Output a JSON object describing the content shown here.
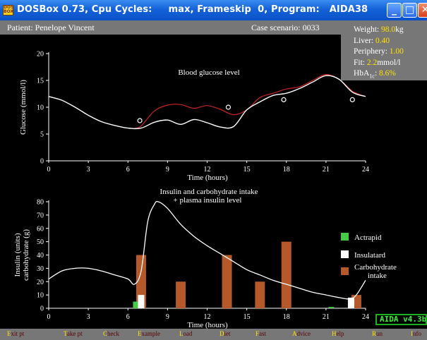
{
  "window": {
    "title": "DOSBox 0.73, Cpu Cycles:     max, Frameskip  0, Program:   AIDA38",
    "min_glyph": "_",
    "max_glyph": "□",
    "close_glyph": "✕",
    "app_icon": "dosbox-icon",
    "app_icon_text": "DOS BOX"
  },
  "info": {
    "patient": "Patient: Penelope Vincent",
    "scenario": "Case scenario: 0033"
  },
  "params": {
    "weight_label": "Weight: ",
    "weight_value": "98.0",
    "weight_unit": "kg",
    "liver_label": "Liver: ",
    "liver_value": "0.40",
    "periphery_label": "Periphery: ",
    "periphery_value": "1.00",
    "fit_label": "Fit: ",
    "fit_value": "2.2",
    "fit_unit": "mmol/l",
    "hba_label": "HbA",
    "hba_sub": "1c",
    "hba_colon": ": ",
    "hba_value": "8.6%"
  },
  "chart_data": [
    {
      "type": "line",
      "title": "Blood glucose level",
      "xlabel": "Time (hours)",
      "ylabel": "Glucose (mmol/l)",
      "xlim": [
        0,
        24
      ],
      "ylim": [
        0,
        20
      ],
      "xticks": [
        0,
        3,
        6,
        9,
        12,
        15,
        18,
        21,
        24
      ],
      "yticks": [
        0,
        5,
        10,
        15,
        20
      ],
      "series": [
        {
          "color": "#ffffff",
          "x": [
            0,
            1,
            2,
            3,
            4,
            5,
            6,
            7,
            8,
            9,
            10,
            11,
            12,
            13,
            14,
            15,
            16,
            17,
            18,
            19,
            20,
            21,
            22,
            23,
            24
          ],
          "y": [
            12,
            11.3,
            10,
            8.5,
            7.3,
            6.6,
            6.1,
            6.1,
            7.2,
            7.6,
            6.8,
            7.7,
            7.1,
            6.3,
            6.4,
            9.5,
            11,
            12.2,
            12.6,
            13.5,
            14.7,
            15.9,
            15.2,
            12.8,
            12
          ]
        },
        {
          "color": "#cc2222",
          "x": [
            6.5,
            7,
            8,
            9,
            10,
            11,
            12,
            13,
            14,
            15,
            16,
            17,
            18,
            19,
            20,
            21,
            22,
            23,
            24
          ],
          "y": [
            6.1,
            6.5,
            9.3,
            10.4,
            10.5,
            9.8,
            10.3,
            9.6,
            8.6,
            9.5,
            11.8,
            12.6,
            13.4,
            13.8,
            15,
            16.1,
            15.2,
            13,
            12
          ]
        }
      ],
      "markers": {
        "shape": "open-circle",
        "x": [
          6.9,
          13.6,
          17.8,
          23
        ],
        "y": [
          7.5,
          10,
          11.4,
          11.4
        ]
      }
    },
    {
      "type": "bar",
      "title_line1": "Insulin and carbohydrate intake",
      "title_line2": "+ plasma insulin level",
      "xlabel": "Time (hours)",
      "ylabel_line1": "Insulin (units)",
      "ylabel_line2": "carbohydrate (g)",
      "xlim": [
        0,
        24
      ],
      "ylim": [
        0,
        80
      ],
      "xticks": [
        0,
        3,
        6,
        9,
        12,
        15,
        18,
        21,
        24
      ],
      "yticks": [
        0,
        10,
        20,
        30,
        40,
        50,
        60,
        70,
        80
      ],
      "legend_position": "right",
      "series": [
        {
          "name": "Actrapid",
          "color": "#44cc44",
          "x": [
            6.6,
            21.4
          ],
          "values": [
            5,
            1
          ]
        },
        {
          "name": "Insulatard",
          "color": "#ffffff",
          "x": [
            7,
            22.9
          ],
          "values": [
            10,
            8
          ]
        },
        {
          "name": "Carbohydrate intake",
          "name_line1": "Carbohydrate",
          "name_line2": "intake",
          "color": "#b5582a",
          "x": [
            7,
            10,
            13.5,
            16,
            18,
            23.3
          ],
          "values": [
            40,
            20,
            40,
            20,
            50,
            10
          ]
        }
      ],
      "line": {
        "name": "plasma insulin level",
        "color": "#ffffff",
        "x": [
          0,
          1,
          2,
          3,
          4,
          5,
          6,
          6.5,
          7,
          7.5,
          8,
          8.3,
          9,
          10,
          11,
          12,
          13,
          14,
          15,
          16,
          17,
          18,
          19,
          20,
          21,
          22,
          22.8,
          23.3,
          24
        ],
        "y": [
          22,
          28,
          30,
          30,
          28,
          25,
          22,
          18,
          28,
          65,
          78,
          80,
          75,
          63,
          54,
          47,
          41,
          35,
          29,
          25,
          21,
          18,
          15,
          12,
          10,
          8,
          7,
          10,
          21
        ]
      }
    }
  ],
  "menu": [
    {
      "key": "E",
      "rest": "xit pt"
    },
    {
      "key": "T",
      "rest": "ake pt"
    },
    {
      "key": "C",
      "rest": "heck"
    },
    {
      "key": "E",
      "rest": "xample"
    },
    {
      "key": "L",
      "rest": "oad"
    },
    {
      "key": "D",
      "rest": "iet"
    },
    {
      "key": "F",
      "rest": "ast"
    },
    {
      "key": "A",
      "rest": "dvice"
    },
    {
      "key": "H",
      "rest": "elp"
    },
    {
      "key": "R",
      "rest": "un"
    },
    {
      "key": "I",
      "rest": "nfo"
    }
  ],
  "aida_tag": "AIDA v4.3b"
}
